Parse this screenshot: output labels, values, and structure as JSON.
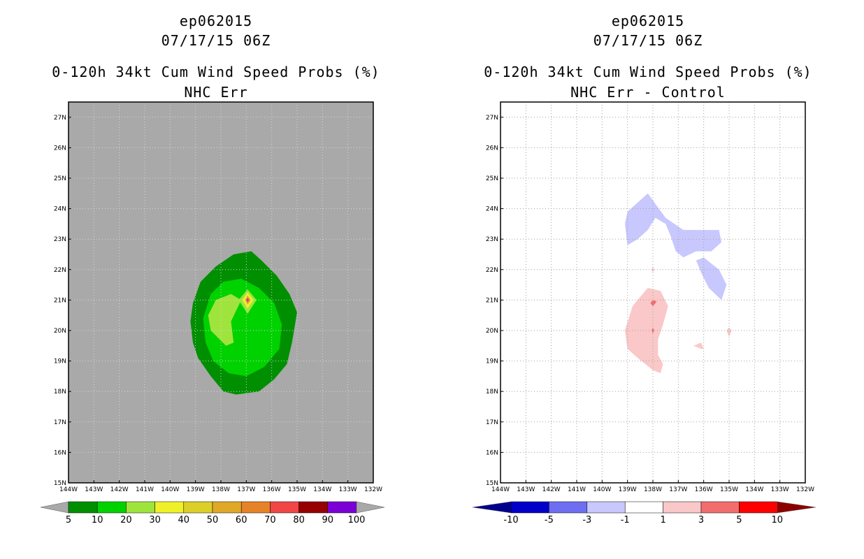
{
  "chart_data": [
    {
      "type": "heatmap",
      "storm_id": "ep062015",
      "datetime": "07/17/15 06Z",
      "title": "0-120h 34kt Cum Wind Speed Probs (%)",
      "subtitle": "NHC Err",
      "xlim": [
        -144,
        -132
      ],
      "ylim": [
        15,
        27.5
      ],
      "x_ticks": [
        "144W",
        "143W",
        "142W",
        "141W",
        "140W",
        "139W",
        "138W",
        "137W",
        "136W",
        "135W",
        "134W",
        "133W",
        "132W"
      ],
      "y_ticks": [
        "15N",
        "16N",
        "17N",
        "18N",
        "19N",
        "20N",
        "21N",
        "22N",
        "23N",
        "24N",
        "25N",
        "26N",
        "27N"
      ],
      "background_color": "#a9a9a9",
      "colorbar": {
        "labels": [
          "5",
          "10",
          "20",
          "30",
          "40",
          "50",
          "60",
          "70",
          "80",
          "90",
          "100"
        ],
        "colors": [
          "#008f00",
          "#00d200",
          "#9fe43c",
          "#f0f028",
          "#dccf28",
          "#e0a828",
          "#e68228",
          "#f04646",
          "#960000",
          "#7a00d6"
        ],
        "under_color": "#a9a9a9",
        "over_color": "#a9a9a9"
      },
      "contours": [
        {
          "level": "5-10",
          "color": "#008f00",
          "points": [
            [
              -139.2,
              20.3
            ],
            [
              -139.1,
              19.6
            ],
            [
              -138.9,
              19.1
            ],
            [
              -138.4,
              18.5
            ],
            [
              -137.9,
              18.0
            ],
            [
              -137.4,
              17.9
            ],
            [
              -136.5,
              18.0
            ],
            [
              -135.9,
              18.4
            ],
            [
              -135.4,
              18.9
            ],
            [
              -135.2,
              19.6
            ],
            [
              -135.0,
              20.6
            ],
            [
              -135.3,
              21.2
            ],
            [
              -135.8,
              21.8
            ],
            [
              -136.4,
              22.3
            ],
            [
              -136.8,
              22.6
            ],
            [
              -137.5,
              22.5
            ],
            [
              -138.2,
              22.1
            ],
            [
              -138.8,
              21.6
            ],
            [
              -139.1,
              20.9
            ]
          ]
        },
        {
          "level": "10-20",
          "color": "#00d200",
          "points": [
            [
              -138.7,
              20.4
            ],
            [
              -138.6,
              19.6
            ],
            [
              -138.3,
              19.0
            ],
            [
              -137.7,
              18.6
            ],
            [
              -137.0,
              18.5
            ],
            [
              -136.3,
              18.8
            ],
            [
              -135.7,
              19.4
            ],
            [
              -135.6,
              20.2
            ],
            [
              -135.9,
              20.9
            ],
            [
              -136.5,
              21.4
            ],
            [
              -137.2,
              21.7
            ],
            [
              -137.9,
              21.6
            ],
            [
              -138.4,
              21.2
            ]
          ]
        },
        {
          "level": "20-30",
          "color": "#9fe43c",
          "points": [
            [
              -138.5,
              20.5
            ],
            [
              -138.4,
              20.0
            ],
            [
              -137.8,
              19.5
            ],
            [
              -137.5,
              19.6
            ],
            [
              -137.6,
              20.3
            ],
            [
              -137.2,
              21.0
            ],
            [
              -137.6,
              21.2
            ],
            [
              -138.2,
              21.0
            ]
          ]
        },
        {
          "level": "20-30 core",
          "color": "#9fe43c",
          "points": [
            [
              -137.3,
              21.0
            ],
            [
              -136.95,
              21.35
            ],
            [
              -136.6,
              21.0
            ],
            [
              -136.95,
              20.55
            ]
          ]
        },
        {
          "level": "30-40",
          "color": "#f0f028",
          "points": [
            [
              -137.15,
              21.0
            ],
            [
              -136.95,
              21.25
            ],
            [
              -136.72,
              21.0
            ],
            [
              -136.95,
              20.72
            ]
          ]
        },
        {
          "level": "50-60",
          "color": "#e0a828",
          "points": [
            [
              -137.05,
              21.0
            ],
            [
              -136.95,
              21.15
            ],
            [
              -136.82,
              21.0
            ],
            [
              -136.95,
              20.85
            ]
          ]
        },
        {
          "level": "70-80",
          "color": "#f04646",
          "points": [
            [
              -137.0,
              21.0
            ],
            [
              -136.95,
              21.08
            ],
            [
              -136.88,
              21.0
            ],
            [
              -136.95,
              20.92
            ]
          ]
        },
        {
          "level": "90-100",
          "color": "#7a00d6",
          "points": [
            [
              -136.98,
              21.0
            ],
            [
              -136.95,
              21.04
            ],
            [
              -136.92,
              21.0
            ],
            [
              -136.95,
              20.96
            ]
          ]
        }
      ]
    },
    {
      "type": "heatmap",
      "storm_id": "ep062015",
      "datetime": "07/17/15 06Z",
      "title": "0-120h 34kt Cum Wind Speed Probs (%)",
      "subtitle": "NHC Err - Control",
      "xlim": [
        -144,
        -132
      ],
      "ylim": [
        15,
        27.5
      ],
      "x_ticks": [
        "144W",
        "143W",
        "142W",
        "141W",
        "140W",
        "139W",
        "138W",
        "137W",
        "136W",
        "135W",
        "134W",
        "133W",
        "132W"
      ],
      "y_ticks": [
        "15N",
        "16N",
        "17N",
        "18N",
        "19N",
        "20N",
        "21N",
        "22N",
        "23N",
        "24N",
        "25N",
        "26N",
        "27N"
      ],
      "background_color": "#ffffff",
      "colorbar": {
        "labels": [
          "-10",
          "-5",
          "-3",
          "-1",
          "1",
          "3",
          "5",
          "10"
        ],
        "colors": [
          "#0000c8",
          "#6e6ef0",
          "#c8c8ff",
          "#ffffff",
          "#fac8c8",
          "#f06e6e",
          "#ff0000"
        ],
        "under_color": "#00008c",
        "over_color": "#8c0000"
      },
      "contours": [
        {
          "level": "-3 to -1",
          "color": "#c8c8ff",
          "points": [
            [
              -139.0,
              23.9
            ],
            [
              -138.2,
              24.5
            ],
            [
              -137.5,
              23.7
            ],
            [
              -136.8,
              23.3
            ],
            [
              -136.0,
              23.3
            ],
            [
              -135.4,
              23.3
            ],
            [
              -135.3,
              22.9
            ],
            [
              -135.7,
              22.6
            ],
            [
              -136.3,
              22.6
            ],
            [
              -136.8,
              22.4
            ],
            [
              -137.1,
              22.6
            ],
            [
              -137.3,
              23.1
            ],
            [
              -137.5,
              23.5
            ],
            [
              -137.9,
              23.7
            ],
            [
              -138.2,
              23.3
            ],
            [
              -138.6,
              23.0
            ],
            [
              -139.0,
              22.8
            ],
            [
              -139.1,
              23.5
            ]
          ]
        },
        {
          "level": "-3 to -1 b",
          "color": "#c8c8ff",
          "points": [
            [
              -136.0,
              22.4
            ],
            [
              -135.4,
              22.0
            ],
            [
              -135.1,
              21.5
            ],
            [
              -135.3,
              21.0
            ],
            [
              -135.8,
              21.4
            ],
            [
              -136.1,
              21.9
            ],
            [
              -136.3,
              22.3
            ]
          ]
        },
        {
          "level": "1 to 3",
          "color": "#fac8c8",
          "points": [
            [
              -139.1,
              20.0
            ],
            [
              -138.8,
              20.8
            ],
            [
              -138.2,
              21.4
            ],
            [
              -137.7,
              21.3
            ],
            [
              -137.4,
              20.8
            ],
            [
              -137.6,
              20.2
            ],
            [
              -137.8,
              19.7
            ],
            [
              -137.8,
              19.2
            ],
            [
              -137.6,
              18.9
            ],
            [
              -137.7,
              18.6
            ],
            [
              -138.0,
              18.7
            ],
            [
              -138.6,
              19.1
            ],
            [
              -139.0,
              19.4
            ]
          ]
        },
        {
          "level": "1 to 3 b",
          "color": "#fac8c8",
          "points": [
            [
              -135.1,
              20.0
            ],
            [
              -135.0,
              19.8
            ],
            [
              -134.9,
              20.0
            ],
            [
              -135.0,
              20.1
            ]
          ]
        },
        {
          "level": "1 to 3 c",
          "color": "#fac8c8",
          "points": [
            [
              -136.4,
              19.5
            ],
            [
              -136.1,
              19.6
            ],
            [
              -136.0,
              19.4
            ],
            [
              -136.1,
              19.4
            ]
          ]
        },
        {
          "level": "1 to 3 d",
          "color": "#fac8c8",
          "points": [
            [
              -138.05,
              22.0
            ],
            [
              -138.0,
              22.1
            ],
            [
              -137.95,
              22.0
            ],
            [
              -138.0,
              21.9
            ]
          ]
        },
        {
          "level": "3 to 5",
          "color": "#f06e6e",
          "points": [
            [
              -138.1,
              20.9
            ],
            [
              -138.0,
              21.0
            ],
            [
              -137.85,
              20.95
            ],
            [
              -138.0,
              20.8
            ]
          ]
        },
        {
          "level": "3 to 5 b",
          "color": "#f06e6e",
          "points": [
            [
              -138.05,
              20.0
            ],
            [
              -138.0,
              20.1
            ],
            [
              -137.95,
              20.0
            ],
            [
              -138.0,
              19.9
            ]
          ]
        }
      ]
    }
  ]
}
